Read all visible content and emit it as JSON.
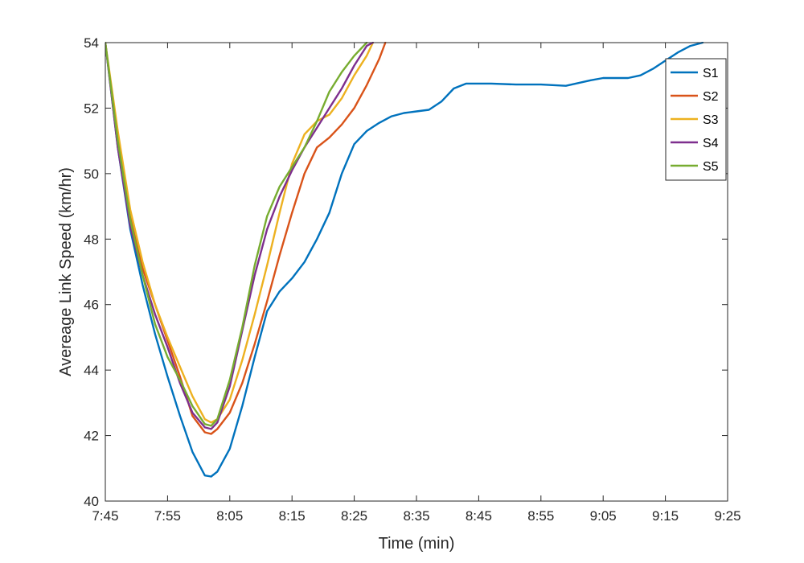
{
  "chart_data": {
    "type": "line",
    "title": "",
    "xlabel": "Time (min)",
    "ylabel": "Avereage Link Speed (km/hr)",
    "x_ticks": [
      "7:45",
      "7:55",
      "8:05",
      "8:15",
      "8:25",
      "8:35",
      "8:45",
      "8:55",
      "9:05",
      "9:15",
      "9:25"
    ],
    "xlim": [
      "7:45",
      "9:25"
    ],
    "ylim": [
      40,
      54
    ],
    "y_ticks": [
      40,
      42,
      44,
      46,
      48,
      50,
      52,
      54
    ],
    "grid": false,
    "legend_position": "top-right",
    "series": [
      {
        "name": "S1",
        "color": "#0072BD",
        "points": [
          [
            "7:45",
            54.0
          ],
          [
            "7:47",
            50.8
          ],
          [
            "7:49",
            48.3
          ],
          [
            "7:51",
            46.6
          ],
          [
            "7:53",
            45.1
          ],
          [
            "7:55",
            43.8
          ],
          [
            "7:57",
            42.6
          ],
          [
            "7:59",
            41.5
          ],
          [
            "8:01",
            40.78
          ],
          [
            "8:02",
            40.75
          ],
          [
            "8:03",
            40.9
          ],
          [
            "8:05",
            41.6
          ],
          [
            "8:07",
            42.9
          ],
          [
            "8:09",
            44.4
          ],
          [
            "8:11",
            45.8
          ],
          [
            "8:13",
            46.4
          ],
          [
            "8:15",
            46.8
          ],
          [
            "8:17",
            47.3
          ],
          [
            "8:19",
            48.0
          ],
          [
            "8:21",
            48.8
          ],
          [
            "8:23",
            50.0
          ],
          [
            "8:25",
            50.9
          ],
          [
            "8:27",
            51.3
          ],
          [
            "8:29",
            51.55
          ],
          [
            "8:31",
            51.75
          ],
          [
            "8:33",
            51.85
          ],
          [
            "8:35",
            51.9
          ],
          [
            "8:37",
            51.95
          ],
          [
            "8:39",
            52.2
          ],
          [
            "8:41",
            52.6
          ],
          [
            "8:43",
            52.75
          ],
          [
            "8:47",
            52.75
          ],
          [
            "8:51",
            52.72
          ],
          [
            "8:55",
            52.72
          ],
          [
            "8:59",
            52.68
          ],
          [
            "9:03",
            52.85
          ],
          [
            "9:05",
            52.92
          ],
          [
            "9:09",
            52.92
          ],
          [
            "9:11",
            53.0
          ],
          [
            "9:13",
            53.2
          ],
          [
            "9:15",
            53.45
          ],
          [
            "9:17",
            53.7
          ],
          [
            "9:19",
            53.9
          ],
          [
            "9:21",
            54.0
          ]
        ]
      },
      {
        "name": "S2",
        "color": "#D95319",
        "points": [
          [
            "7:45",
            54.0
          ],
          [
            "7:47",
            51.0
          ],
          [
            "7:49",
            48.7
          ],
          [
            "7:51",
            47.1
          ],
          [
            "7:53",
            46.0
          ],
          [
            "7:55",
            44.9
          ],
          [
            "7:57",
            43.8
          ],
          [
            "7:59",
            42.6
          ],
          [
            "8:01",
            42.1
          ],
          [
            "8:02",
            42.05
          ],
          [
            "8:03",
            42.2
          ],
          [
            "8:05",
            42.7
          ],
          [
            "8:07",
            43.6
          ],
          [
            "8:09",
            44.8
          ],
          [
            "8:11",
            46.1
          ],
          [
            "8:13",
            47.5
          ],
          [
            "8:15",
            48.8
          ],
          [
            "8:17",
            50.0
          ],
          [
            "8:19",
            50.8
          ],
          [
            "8:21",
            51.1
          ],
          [
            "8:23",
            51.5
          ],
          [
            "8:25",
            52.0
          ],
          [
            "8:27",
            52.7
          ],
          [
            "8:29",
            53.5
          ],
          [
            "8:30",
            54.0
          ]
        ]
      },
      {
        "name": "S3",
        "color": "#EDB120",
        "points": [
          [
            "7:45",
            54.0
          ],
          [
            "7:47",
            51.3
          ],
          [
            "7:49",
            48.9
          ],
          [
            "7:51",
            47.3
          ],
          [
            "7:53",
            46.0
          ],
          [
            "7:55",
            45.0
          ],
          [
            "7:57",
            44.1
          ],
          [
            "7:59",
            43.2
          ],
          [
            "8:01",
            42.5
          ],
          [
            "8:02",
            42.4
          ],
          [
            "8:03",
            42.5
          ],
          [
            "8:05",
            43.1
          ],
          [
            "8:07",
            44.3
          ],
          [
            "8:09",
            45.7
          ],
          [
            "8:11",
            47.2
          ],
          [
            "8:13",
            48.8
          ],
          [
            "8:15",
            50.3
          ],
          [
            "8:17",
            51.2
          ],
          [
            "8:19",
            51.6
          ],
          [
            "8:21",
            51.8
          ],
          [
            "8:23",
            52.3
          ],
          [
            "8:25",
            53.0
          ],
          [
            "8:27",
            53.6
          ],
          [
            "8:28",
            54.0
          ]
        ]
      },
      {
        "name": "S4",
        "color": "#7E2F8E",
        "points": [
          [
            "7:45",
            54.0
          ],
          [
            "7:47",
            50.8
          ],
          [
            "7:49",
            48.4
          ],
          [
            "7:51",
            46.9
          ],
          [
            "7:53",
            45.7
          ],
          [
            "7:55",
            44.7
          ],
          [
            "7:57",
            43.6
          ],
          [
            "7:59",
            42.7
          ],
          [
            "8:01",
            42.25
          ],
          [
            "8:02",
            42.2
          ],
          [
            "8:03",
            42.4
          ],
          [
            "8:05",
            43.5
          ],
          [
            "8:07",
            45.2
          ],
          [
            "8:09",
            46.9
          ],
          [
            "8:11",
            48.3
          ],
          [
            "8:13",
            49.3
          ],
          [
            "8:15",
            50.1
          ],
          [
            "8:17",
            50.8
          ],
          [
            "8:19",
            51.4
          ],
          [
            "8:21",
            52.0
          ],
          [
            "8:23",
            52.6
          ],
          [
            "8:25",
            53.3
          ],
          [
            "8:27",
            53.9
          ],
          [
            "8:28",
            54.0
          ]
        ]
      },
      {
        "name": "S5",
        "color": "#77AC30",
        "points": [
          [
            "7:45",
            54.0
          ],
          [
            "7:47",
            51.0
          ],
          [
            "7:49",
            48.6
          ],
          [
            "7:51",
            46.9
          ],
          [
            "7:53",
            45.4
          ],
          [
            "7:55",
            44.4
          ],
          [
            "7:57",
            43.7
          ],
          [
            "7:59",
            42.9
          ],
          [
            "8:01",
            42.35
          ],
          [
            "8:02",
            42.3
          ],
          [
            "8:03",
            42.5
          ],
          [
            "8:05",
            43.7
          ],
          [
            "8:07",
            45.3
          ],
          [
            "8:09",
            47.2
          ],
          [
            "8:11",
            48.7
          ],
          [
            "8:13",
            49.6
          ],
          [
            "8:15",
            50.2
          ],
          [
            "8:17",
            50.8
          ],
          [
            "8:19",
            51.6
          ],
          [
            "8:21",
            52.5
          ],
          [
            "8:23",
            53.1
          ],
          [
            "8:25",
            53.6
          ],
          [
            "8:27",
            54.0
          ]
        ]
      }
    ]
  }
}
